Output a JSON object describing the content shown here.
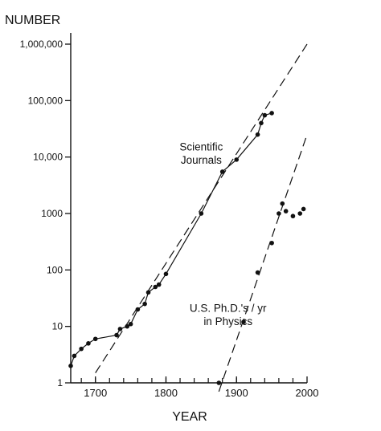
{
  "chart_data": {
    "type": "scatter",
    "ylabel": "NUMBER",
    "xlabel": "YEAR",
    "y_scale": "log",
    "xlim": [
      1665,
      2000
    ],
    "ylim": [
      1,
      1000000
    ],
    "x_ticks": [
      {
        "value": 1700,
        "label": "1700"
      },
      {
        "value": 1800,
        "label": "1800"
      },
      {
        "value": 1900,
        "label": "1900"
      },
      {
        "value": 2000,
        "label": "2000"
      }
    ],
    "y_ticks": [
      {
        "value": 1,
        "label": "1"
      },
      {
        "value": 10,
        "label": "10"
      },
      {
        "value": 100,
        "label": "100"
      },
      {
        "value": 1000,
        "label": "1000"
      },
      {
        "value": 10000,
        "label": "10,000"
      },
      {
        "value": 100000,
        "label": "100,000"
      },
      {
        "value": 1000000,
        "label": "1,000,000"
      }
    ],
    "grid": false,
    "legend": "none",
    "annotations": [
      {
        "text_lines": [
          "Scientific",
          "Journals"
        ],
        "year": 1850,
        "value": 13000
      },
      {
        "text_lines": [
          "U.S. Ph.D.'s / yr",
          "in Physics"
        ],
        "year": 1888,
        "value": 18
      }
    ],
    "series": [
      {
        "id": "journals",
        "points": [
          [
            1665,
            2
          ],
          [
            1670,
            3
          ],
          [
            1680,
            4
          ],
          [
            1690,
            5
          ],
          [
            1700,
            6
          ],
          [
            1730,
            7
          ],
          [
            1735,
            9
          ],
          [
            1745,
            10
          ],
          [
            1750,
            11
          ],
          [
            1760,
            20
          ],
          [
            1770,
            25
          ],
          [
            1775,
            40
          ],
          [
            1785,
            50
          ],
          [
            1790,
            55
          ],
          [
            1800,
            85
          ],
          [
            1850,
            1000
          ],
          [
            1880,
            5500
          ],
          [
            1900,
            9000
          ],
          [
            1930,
            25000
          ],
          [
            1935,
            40000
          ],
          [
            1940,
            55000
          ],
          [
            1950,
            60000
          ]
        ]
      },
      {
        "id": "physics_phds",
        "points": [
          [
            1875,
            1
          ],
          [
            1910,
            12
          ],
          [
            1930,
            90
          ],
          [
            1950,
            300
          ],
          [
            1960,
            1000
          ],
          [
            1965,
            1500
          ],
          [
            1970,
            1100
          ],
          [
            1980,
            900
          ],
          [
            1990,
            1000
          ],
          [
            1995,
            1200
          ]
        ]
      }
    ],
    "trend_lines": [
      {
        "for": "journals",
        "from": [
          1700,
          1.5
        ],
        "to": [
          2000,
          1000000
        ]
      },
      {
        "for": "physics_phds",
        "from": [
          1875,
          0.7
        ],
        "to": [
          2000,
          25000
        ]
      }
    ]
  }
}
